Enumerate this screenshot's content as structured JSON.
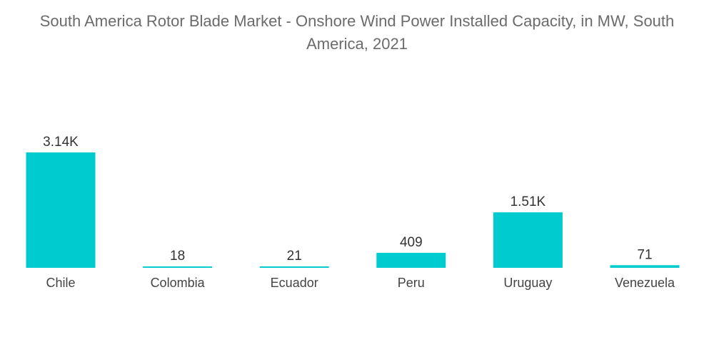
{
  "chart_data": {
    "type": "bar",
    "title_line1": "South America Rotor Blade Market - Onshore Wind Power Installed Capacity, in MW, South",
    "title_line2": "America, 2021",
    "categories": [
      "Chile",
      "Colombia",
      "Ecuador",
      "Peru",
      "Uruguay",
      "Venezuela"
    ],
    "values": [
      3140,
      18,
      21,
      409,
      1510,
      71
    ],
    "value_labels": [
      "3.14K",
      "18",
      "21",
      "409",
      "1.51K",
      "71"
    ],
    "bar_color": "#00cccf",
    "grid": false,
    "legend": "none"
  }
}
